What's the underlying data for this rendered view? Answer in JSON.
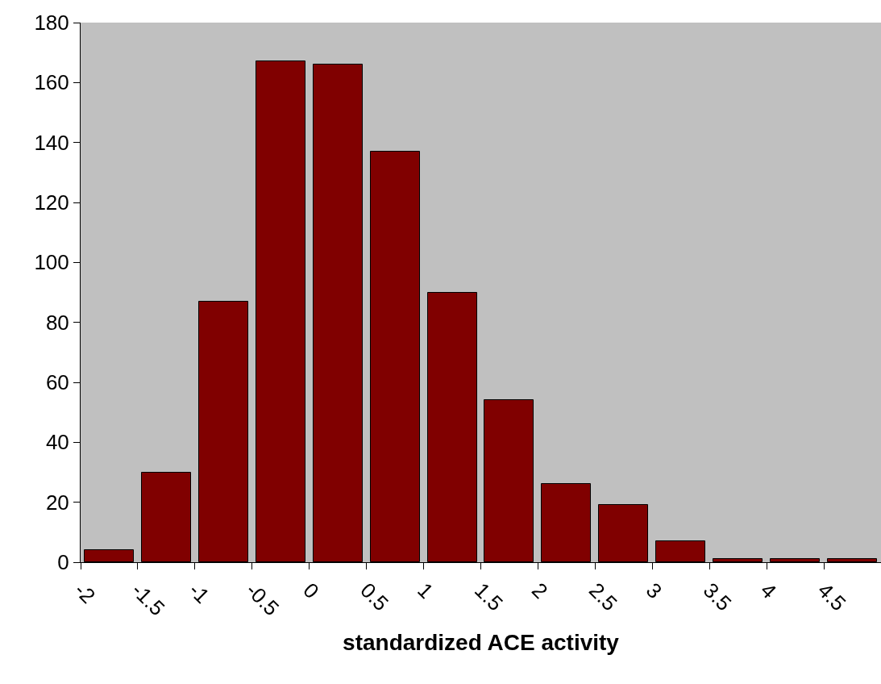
{
  "chart_data": {
    "type": "histogram",
    "xlabel": "standardized ACE activity",
    "bins": [
      -2,
      -1.5,
      -1,
      -0.5,
      0,
      0.5,
      1,
      1.5,
      2,
      2.5,
      3,
      3.5,
      4,
      4.5,
      5
    ],
    "values": [
      4,
      30,
      87,
      167,
      166,
      137,
      90,
      54,
      26,
      19,
      7,
      1,
      1,
      1
    ],
    "color": "#800000",
    "xlim": [
      -2,
      5
    ],
    "xticks": [
      -2,
      -1.5,
      -1,
      -0.5,
      0,
      0.5,
      1,
      1.5,
      2,
      2.5,
      3,
      3.5,
      4,
      4.5
    ],
    "ylim": [
      0,
      180
    ],
    "yticks": [
      0,
      20,
      40,
      60,
      80,
      100,
      120,
      140,
      160,
      180
    ],
    "grid": false,
    "legend": false
  }
}
